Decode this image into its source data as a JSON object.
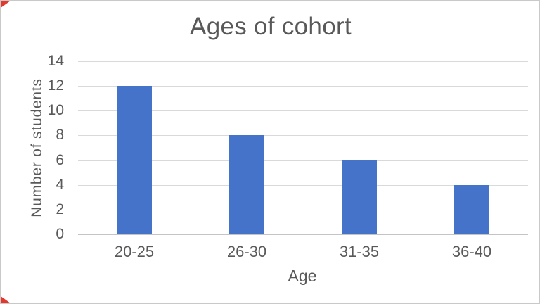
{
  "window": {
    "background_color": "#ffffff",
    "frame_border_color": "#c9c9c9"
  },
  "decorations": {
    "corner_marker_color": "#e4372d",
    "corner_marker_positions": [
      "top-left",
      "bottom-left"
    ]
  },
  "chart_data": {
    "type": "bar",
    "title": "Ages of cohort",
    "categories": [
      "20-25",
      "26-30",
      "31-35",
      "36-40"
    ],
    "values": [
      12,
      8,
      6,
      4
    ],
    "xlabel": "Age",
    "ylabel": "Number of students",
    "ylim": [
      0,
      14
    ],
    "yticks": [
      0,
      2,
      4,
      6,
      8,
      10,
      12,
      14
    ],
    "grid": true,
    "legend": false,
    "bar_color": "#4573c9",
    "gridline_color": "#d9d9d9",
    "axis_line_color": "#c4c4c4",
    "text_color": "#595959"
  }
}
